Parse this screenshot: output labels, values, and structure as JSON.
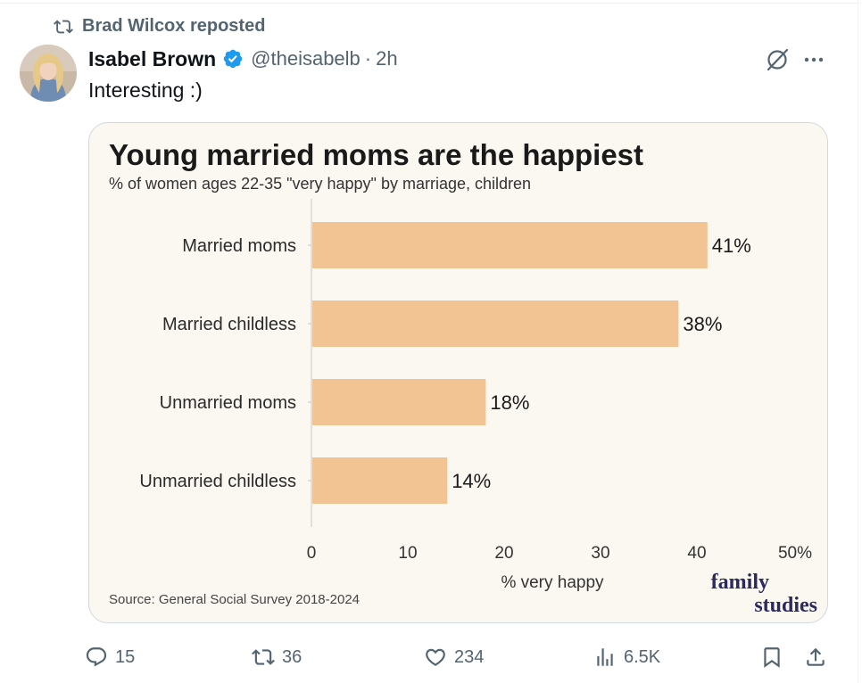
{
  "repost": {
    "label": "Brad Wilcox reposted",
    "icon": "repost-icon"
  },
  "tweet": {
    "author": "Isabel Brown",
    "handle": "@theisabelb",
    "separator": "·",
    "time": "2h",
    "text": "Interesting :)",
    "verified_color": "#1d9bf0"
  },
  "chart_data": {
    "type": "bar",
    "orientation": "horizontal",
    "title": "Young married moms are the happiest",
    "subtitle": "% of women ages 22-35 \"very happy\" by marriage, children",
    "categories": [
      "Married moms",
      "Married childless",
      "Unmarried moms",
      "Unmarried childless"
    ],
    "values": [
      41,
      38,
      18,
      14
    ],
    "value_labels": [
      "41%",
      "38%",
      "18%",
      "14%"
    ],
    "xlabel": "% very happy",
    "xlim": [
      0,
      50
    ],
    "ticks": [
      0,
      10,
      20,
      30,
      40,
      50
    ],
    "tick_labels": [
      "0",
      "10",
      "20",
      "30",
      "40",
      "50%"
    ],
    "source": "Source: General Social Survey 2018-2024",
    "logo": "family studies",
    "bar_color": "#f2c494",
    "background_color": "#fbf8f2",
    "grid": false
  },
  "actions": {
    "reply_count": "15",
    "repost_count": "36",
    "like_count": "234",
    "views_count": "6.5K"
  },
  "colors": {
    "secondary_text": "#536471",
    "primary_text": "#0f1419",
    "logo": "#2b2a5e"
  }
}
